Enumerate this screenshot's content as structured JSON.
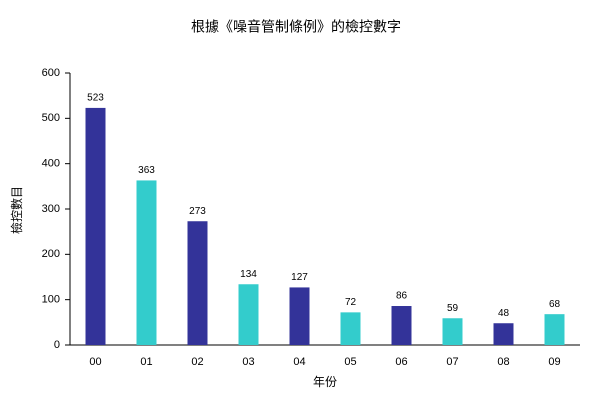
{
  "chart_data": {
    "type": "bar",
    "title": "根據《噪音管制條例》的檢控數字",
    "x_label": "年份",
    "y_label": "檢控數目",
    "categories": [
      "00",
      "01",
      "02",
      "03",
      "04",
      "05",
      "06",
      "07",
      "08",
      "09"
    ],
    "values": [
      523,
      363,
      273,
      134,
      127,
      72,
      86,
      59,
      48,
      68
    ],
    "colors": [
      "#333399",
      "#33cccc",
      "#333399",
      "#33cccc",
      "#333399",
      "#33cccc",
      "#333399",
      "#33cccc",
      "#333399",
      "#33cccc"
    ],
    "ylim": [
      0,
      600
    ],
    "yticks": [
      0,
      100,
      200,
      300,
      400,
      500,
      600
    ],
    "grid": false,
    "data_labels": true
  }
}
